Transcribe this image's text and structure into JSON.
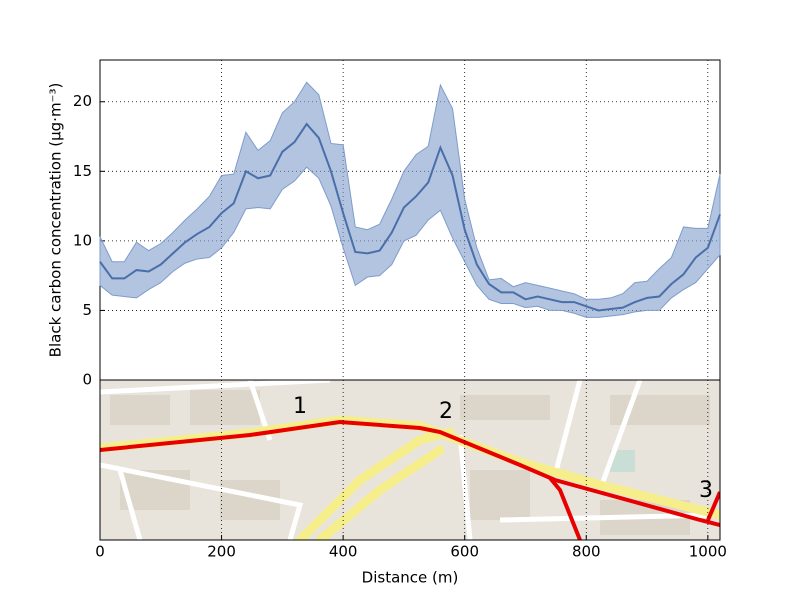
{
  "chart_data": {
    "type": "line-band",
    "ylabel": "Black carbon concentration (μg·m⁻³)",
    "xlabel": "Distance (m)",
    "x": [
      0,
      20,
      40,
      60,
      80,
      100,
      120,
      140,
      160,
      180,
      200,
      220,
      240,
      260,
      280,
      300,
      320,
      340,
      360,
      380,
      400,
      420,
      440,
      460,
      480,
      500,
      520,
      540,
      560,
      580,
      600,
      620,
      640,
      660,
      680,
      700,
      720,
      740,
      760,
      780,
      800,
      820,
      840,
      860,
      880,
      900,
      920,
      940,
      960,
      980,
      1000,
      1020
    ],
    "values": [
      8.5,
      7.3,
      7.3,
      7.9,
      7.8,
      8.3,
      9.1,
      9.9,
      10.5,
      11.0,
      12.0,
      12.7,
      15.0,
      14.5,
      14.7,
      16.4,
      17.1,
      18.4,
      17.4,
      15.0,
      12.0,
      9.2,
      9.1,
      9.3,
      10.6,
      12.4,
      13.2,
      14.2,
      16.7,
      14.7,
      10.8,
      8.3,
      6.9,
      6.3,
      6.3,
      5.8,
      6.0,
      5.8,
      5.6,
      5.6,
      5.3,
      5.0,
      5.1,
      5.2,
      5.6,
      5.9,
      6.0,
      6.9,
      7.6,
      8.8,
      9.5,
      11.9
    ],
    "upper": [
      10.3,
      8.5,
      8.5,
      9.9,
      9.3,
      9.8,
      10.6,
      11.5,
      12.3,
      13.2,
      14.7,
      14.8,
      17.8,
      16.5,
      17.2,
      19.2,
      20.0,
      21.4,
      20.5,
      17.0,
      16.9,
      11.0,
      10.8,
      11.2,
      13.0,
      15.0,
      16.2,
      16.8,
      21.2,
      19.5,
      13.0,
      9.5,
      7.2,
      7.3,
      6.7,
      7.0,
      6.8,
      6.6,
      6.4,
      6.2,
      5.8,
      5.8,
      5.9,
      6.2,
      7.0,
      7.1,
      8.0,
      8.8,
      11.0,
      10.9,
      10.9,
      14.8
    ],
    "lower": [
      6.8,
      6.1,
      6.0,
      5.9,
      6.5,
      7.0,
      7.8,
      8.4,
      8.7,
      8.8,
      9.5,
      10.6,
      12.3,
      12.4,
      12.3,
      13.7,
      14.3,
      15.3,
      14.5,
      12.5,
      9.5,
      6.8,
      7.4,
      7.5,
      8.3,
      10.0,
      10.4,
      11.5,
      12.2,
      10.2,
      8.5,
      6.8,
      5.8,
      5.5,
      5.5,
      5.2,
      5.3,
      5.0,
      5.0,
      4.8,
      4.5,
      4.5,
      4.6,
      4.7,
      4.9,
      5.0,
      5.0,
      5.9,
      6.5,
      7.0,
      8.0,
      9.0
    ],
    "color": "#4a6fa8",
    "band_color": "#7e9ccb",
    "xlim": [
      0,
      1020
    ],
    "ylim": [
      0,
      23
    ],
    "xticks": [
      0,
      200,
      400,
      600,
      800,
      1000
    ],
    "yticks": [
      0,
      5,
      10,
      15,
      20
    ],
    "grid": true,
    "map_labels": [
      "1",
      "2",
      "3"
    ]
  }
}
